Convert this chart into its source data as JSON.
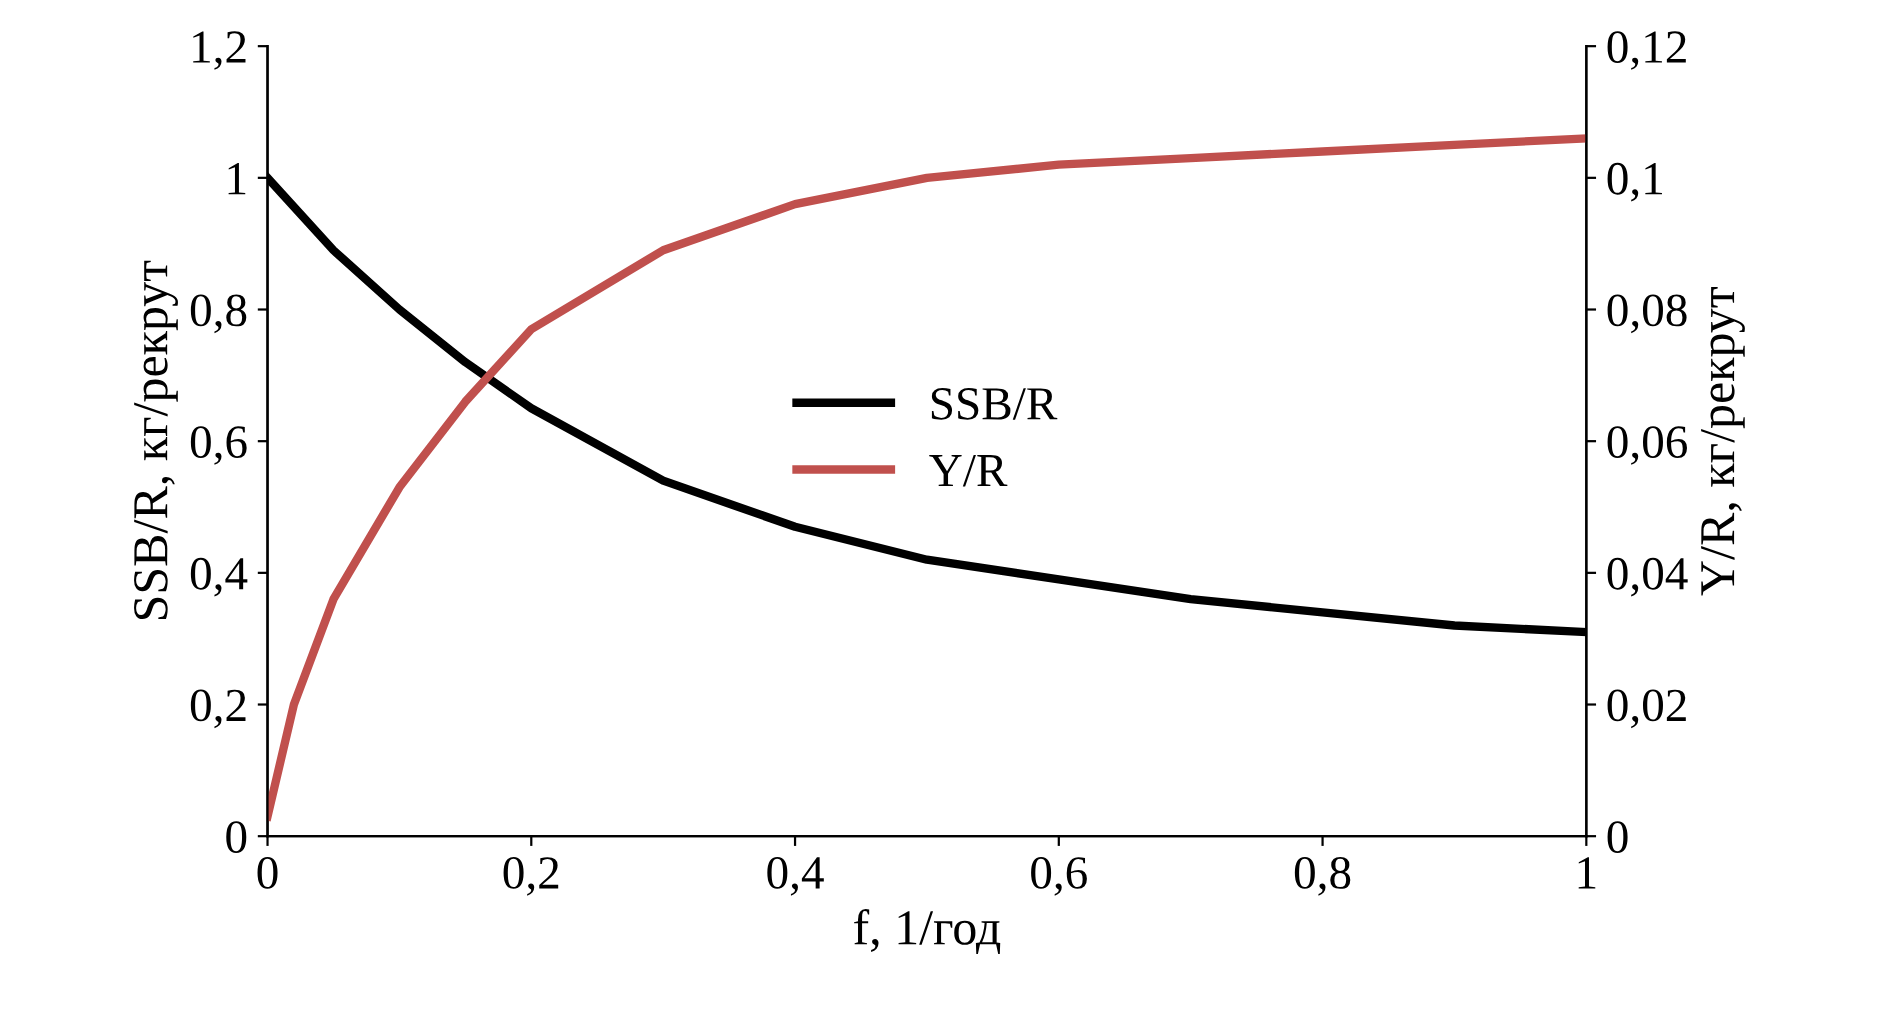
{
  "chart_data": {
    "type": "line",
    "xlabel": "f, 1/год",
    "ylabel": "SSB/R, кг/рекрут",
    "y2label": "Y/R, кг/рекрут",
    "xlim": [
      0,
      1
    ],
    "xticks": [
      0,
      {
        "value": 0.2,
        "label": "0,2"
      },
      {
        "value": 0.4,
        "label": "0,4"
      },
      {
        "value": 0.6,
        "label": "0,6"
      },
      {
        "value": 0.8,
        "label": "0,8"
      },
      1
    ],
    "ylim": [
      0,
      1.2
    ],
    "yticks": [
      0,
      {
        "value": 0.2,
        "label": "0,2"
      },
      {
        "value": 0.4,
        "label": "0,4"
      },
      {
        "value": 0.6,
        "label": "0,6"
      },
      {
        "value": 0.8,
        "label": "0,8"
      },
      1,
      {
        "value": 1.2,
        "label": "1,2"
      }
    ],
    "y2lim": [
      0,
      0.12
    ],
    "y2ticks": [
      0,
      {
        "value": 0.02,
        "label": "0,02"
      },
      {
        "value": 0.04,
        "label": "0,04"
      },
      {
        "value": 0.06,
        "label": "0,06"
      },
      {
        "value": 0.08,
        "label": "0,08"
      },
      {
        "value": 0.1,
        "label": "0,1"
      },
      {
        "value": 0.12,
        "label": "0,12"
      }
    ],
    "grid": false,
    "legend": "center",
    "marker": "none",
    "line_style": "solid",
    "series": [
      {
        "name": "SSB/R",
        "color": "#000000",
        "x": [
          0,
          0.05,
          0.1,
          0.15,
          0.2,
          0.3,
          0.4,
          0.5,
          0.6,
          0.7,
          0.8,
          0.9,
          1.0
        ],
        "values": [
          1.0,
          0.89,
          0.8,
          0.72,
          0.65,
          0.54,
          0.47,
          0.42,
          0.39,
          0.36,
          0.34,
          0.32,
          0.31
        ]
      },
      {
        "name": "Y/R",
        "color": "#c0504d",
        "axis": "y2",
        "x": [
          0,
          0.02,
          0.05,
          0.1,
          0.15,
          0.2,
          0.3,
          0.4,
          0.5,
          0.6,
          0.7,
          0.8,
          0.9,
          1.0
        ],
        "values": [
          0.003,
          0.02,
          0.036,
          0.053,
          0.066,
          0.077,
          0.089,
          0.096,
          0.1,
          0.102,
          0.103,
          0.104,
          0.105,
          0.106
        ]
      }
    ]
  }
}
